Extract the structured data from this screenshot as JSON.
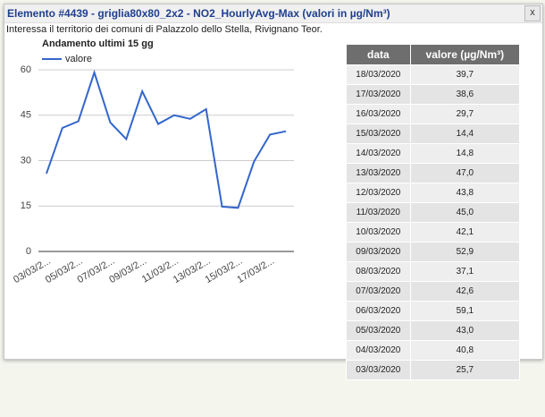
{
  "popup": {
    "title": "Elemento #4439 - griglia80x80_2x2 - NO2_HourlyAvg-Max (valori in µg/Nm³)",
    "close": "x",
    "subtitle": "Interessa il territorio dei comuni di Palazzolo dello Stella, Rivignano Teor."
  },
  "chart_data": {
    "type": "line",
    "title": "Andamento ultimi 15 gg",
    "categories": [
      "03/03/2...",
      null,
      "05/03/2...",
      null,
      "07/03/2...",
      null,
      "09/03/2...",
      null,
      "11/03/2...",
      null,
      "13/03/2...",
      null,
      "15/03/2...",
      null,
      "17/03/2...",
      null
    ],
    "series": [
      {
        "name": "valore",
        "color": "#3366cc",
        "values": [
          25.7,
          40.8,
          43.0,
          59.1,
          42.6,
          37.1,
          52.9,
          42.1,
          45.0,
          43.8,
          47.0,
          14.8,
          14.4,
          29.7,
          38.6,
          39.7
        ]
      }
    ],
    "ylim": [
      0,
      60
    ],
    "yticks": [
      0,
      15,
      30,
      45,
      60
    ],
    "grid": true,
    "legend": "top-left"
  },
  "table": {
    "columns": [
      "data",
      "valore (µg/Nm³)"
    ],
    "rows": [
      [
        "18/03/2020",
        "39,7"
      ],
      [
        "17/03/2020",
        "38,6"
      ],
      [
        "16/03/2020",
        "29,7"
      ],
      [
        "15/03/2020",
        "14,4"
      ],
      [
        "14/03/2020",
        "14,8"
      ],
      [
        "13/03/2020",
        "47,0"
      ],
      [
        "12/03/2020",
        "43,8"
      ],
      [
        "11/03/2020",
        "45,0"
      ],
      [
        "10/03/2020",
        "42,1"
      ],
      [
        "09/03/2020",
        "52,9"
      ],
      [
        "08/03/2020",
        "37,1"
      ],
      [
        "07/03/2020",
        "42,6"
      ],
      [
        "06/03/2020",
        "59,1"
      ],
      [
        "05/03/2020",
        "43,0"
      ],
      [
        "04/03/2020",
        "40,8"
      ],
      [
        "03/03/2020",
        "25,7"
      ]
    ]
  }
}
